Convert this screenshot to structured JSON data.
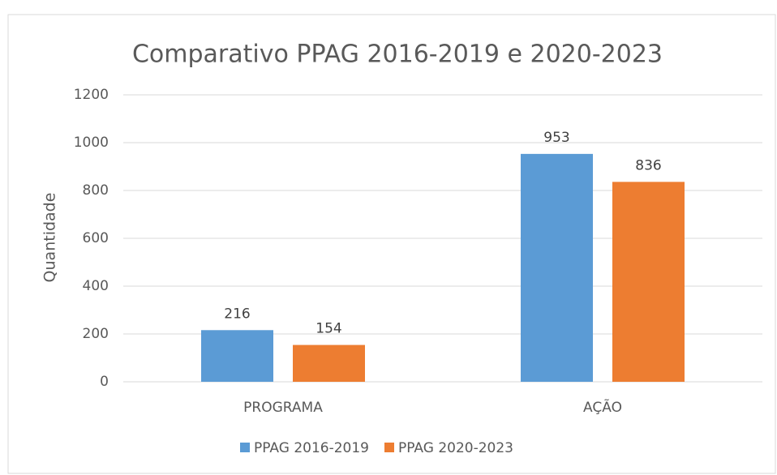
{
  "chart_data": {
    "type": "bar",
    "title": "Comparativo PPAG 2016-2019 e 2020-2023",
    "y_label": "Quantidade",
    "categories": [
      "PROGRAMA",
      "AÇÃO"
    ],
    "series": [
      {
        "name": "PPAG 2016-2019",
        "color": "#5b9bd5",
        "values": [
          216,
          953
        ]
      },
      {
        "name": "PPAG 2020-2023",
        "color": "#ed7d31",
        "values": [
          154,
          836
        ]
      }
    ],
    "ylim": [
      0,
      1200
    ],
    "yticks": [
      0,
      200,
      400,
      600,
      800,
      1000,
      1200
    ],
    "grid": true,
    "legend": "bottom"
  }
}
